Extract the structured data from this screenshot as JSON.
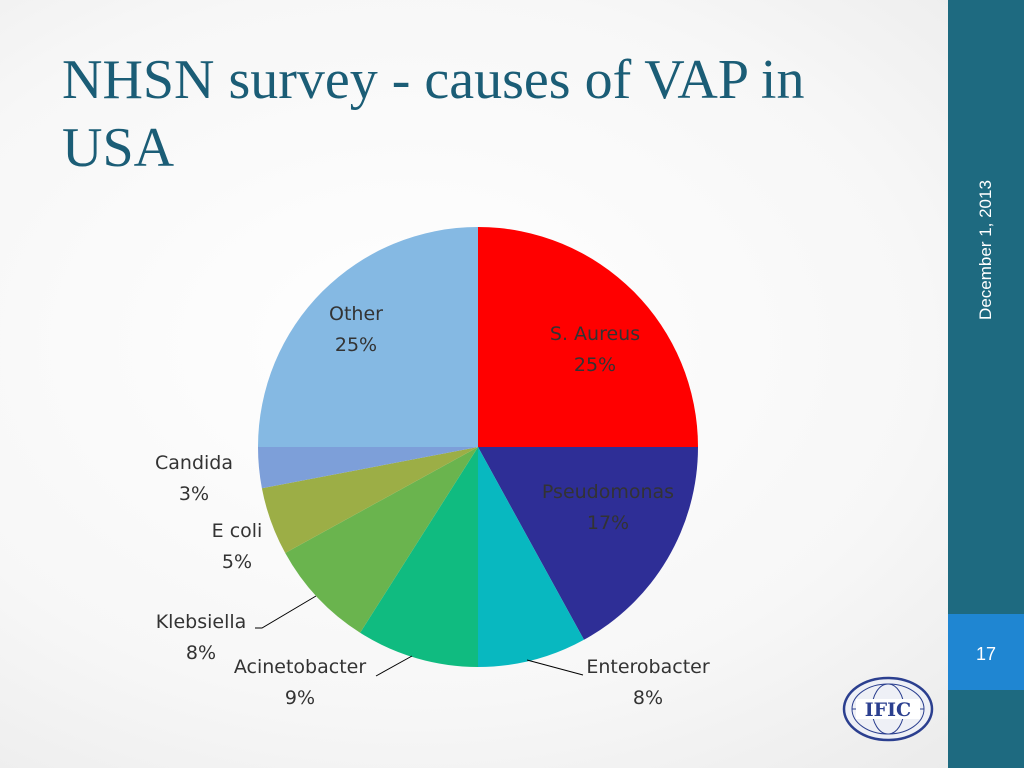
{
  "slide": {
    "title": "NHSN survey - causes of VAP in USA",
    "date": "December 1, 2013",
    "page_number": "17",
    "colors": {
      "title": "#1b5d76",
      "sidebar": "#1e6a80",
      "page_box": "#1f86d2"
    }
  },
  "logo": {
    "text": "IFIC",
    "icon": "ific-globe-logo"
  },
  "chart_data": {
    "type": "pie",
    "title": "",
    "start_angle_deg": 0,
    "direction": "clockwise",
    "slices": [
      {
        "label": "S. Aureus",
        "value": 25,
        "pct": "25%",
        "color": "#ff0000"
      },
      {
        "label": "Pseudomonas",
        "value": 17,
        "pct": "17%",
        "color": "#2e2e96"
      },
      {
        "label": "Enterobacter",
        "value": 8,
        "pct": "8%",
        "color": "#08b8c0"
      },
      {
        "label": "Acinetobacter",
        "value": 9,
        "pct": "9%",
        "color": "#10bb80"
      },
      {
        "label": "Klebsiella",
        "value": 8,
        "pct": "8%",
        "color": "#6ab44e"
      },
      {
        "label": "E coli",
        "value": 5,
        "pct": "5%",
        "color": "#9cae46"
      },
      {
        "label": "Candida",
        "value": 3,
        "pct": "3%",
        "color": "#7d9fd9"
      },
      {
        "label": "Other",
        "value": 25,
        "pct": "25%",
        "color": "#85b9e3"
      }
    ]
  }
}
